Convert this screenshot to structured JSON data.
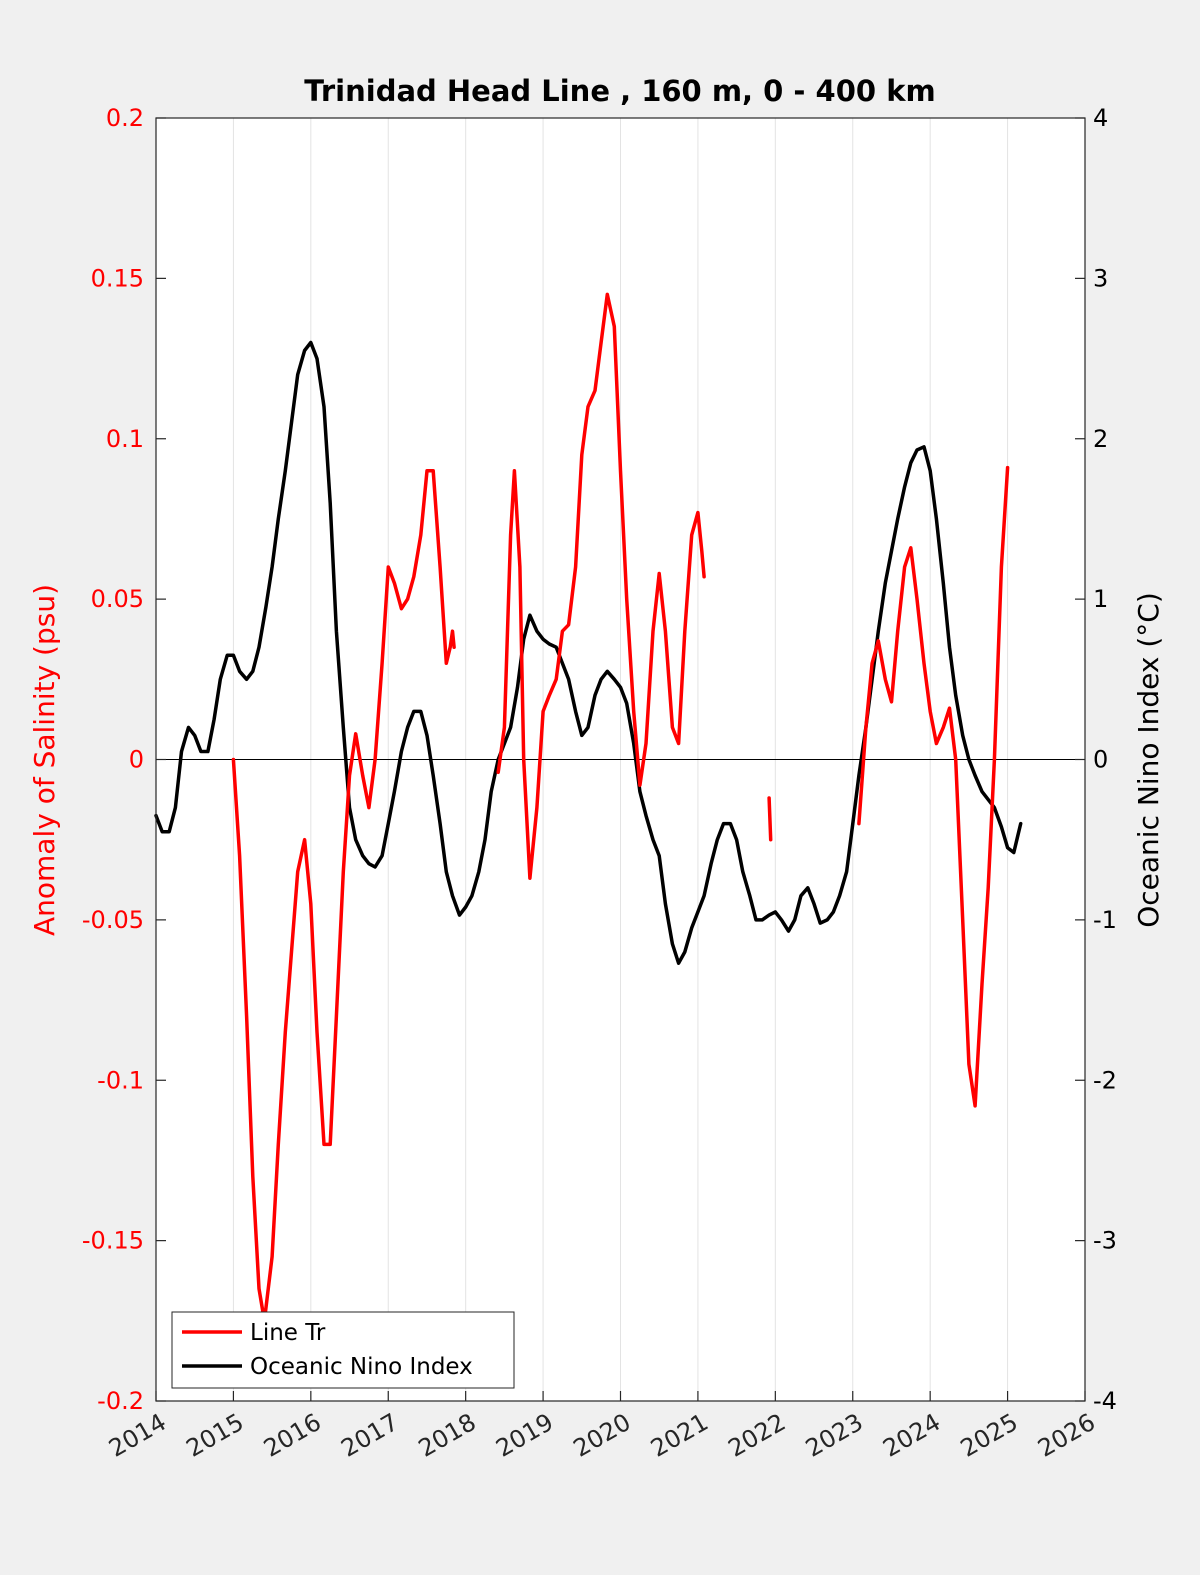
{
  "chart_data": {
    "type": "line",
    "title": "Trinidad Head Line , 160 m, 0 - 400 km",
    "xlim": [
      2014,
      2026
    ],
    "x_ticks": [
      "2014",
      "2015",
      "2016",
      "2017",
      "2018",
      "2019",
      "2020",
      "2021",
      "2022",
      "2023",
      "2024",
      "2025",
      "2026"
    ],
    "grid": "vertical",
    "legend_position": "bottom-left",
    "left_axis": {
      "label": "Anomaly of Salinity (psu)",
      "ylim": [
        -0.2,
        0.2
      ],
      "ticks": [
        "0.2",
        "0.15",
        "0.1",
        "0.05",
        "0",
        "-0.05",
        "-0.1",
        "-0.15",
        "-0.2"
      ],
      "color": "#ff0000"
    },
    "right_axis": {
      "label": "Oceanic Nino Index (°C)",
      "ylim": [
        -4,
        4
      ],
      "ticks": [
        "4",
        "3",
        "2",
        "1",
        "0",
        "-1",
        "-2",
        "-3",
        "-4"
      ],
      "color": "#000000"
    },
    "series": [
      {
        "name": "Line Tr",
        "axis": "left",
        "color": "#ff0000",
        "segments": [
          [
            [
              2015.0,
              0.0
            ],
            [
              2015.08,
              -0.03
            ],
            [
              2015.17,
              -0.08
            ],
            [
              2015.25,
              -0.13
            ],
            [
              2015.33,
              -0.165
            ],
            [
              2015.4,
              -0.175
            ],
            [
              2015.5,
              -0.155
            ],
            [
              2015.58,
              -0.12
            ],
            [
              2015.67,
              -0.085
            ],
            [
              2015.75,
              -0.06
            ],
            [
              2015.83,
              -0.035
            ],
            [
              2015.92,
              -0.025
            ],
            [
              2016.0,
              -0.045
            ],
            [
              2016.08,
              -0.085
            ],
            [
              2016.17,
              -0.12
            ],
            [
              2016.25,
              -0.12
            ],
            [
              2016.33,
              -0.08
            ],
            [
              2016.42,
              -0.035
            ],
            [
              2016.5,
              -0.005
            ],
            [
              2016.58,
              0.008
            ],
            [
              2016.67,
              -0.005
            ],
            [
              2016.75,
              -0.015
            ],
            [
              2016.83,
              0.0
            ],
            [
              2016.92,
              0.03
            ],
            [
              2017.0,
              0.06
            ],
            [
              2017.08,
              0.055
            ],
            [
              2017.17,
              0.047
            ],
            [
              2017.25,
              0.05
            ],
            [
              2017.33,
              0.057
            ],
            [
              2017.42,
              0.07
            ],
            [
              2017.5,
              0.09
            ],
            [
              2017.58,
              0.09
            ],
            [
              2017.67,
              0.06
            ],
            [
              2017.75,
              0.03
            ],
            [
              2017.8,
              0.035
            ],
            [
              2017.83,
              0.04
            ],
            [
              2017.85,
              0.035
            ]
          ],
          [
            [
              2018.42,
              -0.004
            ],
            [
              2018.5,
              0.01
            ],
            [
              2018.58,
              0.07
            ],
            [
              2018.63,
              0.09
            ],
            [
              2018.7,
              0.06
            ],
            [
              2018.75,
              0.0
            ],
            [
              2018.83,
              -0.037
            ],
            [
              2018.92,
              -0.015
            ],
            [
              2019.0,
              0.015
            ],
            [
              2019.08,
              0.02
            ],
            [
              2019.17,
              0.025
            ],
            [
              2019.25,
              0.04
            ],
            [
              2019.33,
              0.042
            ],
            [
              2019.42,
              0.06
            ],
            [
              2019.5,
              0.095
            ],
            [
              2019.58,
              0.11
            ],
            [
              2019.67,
              0.115
            ],
            [
              2019.75,
              0.13
            ],
            [
              2019.83,
              0.145
            ],
            [
              2019.92,
              0.135
            ],
            [
              2020.0,
              0.09
            ],
            [
              2020.08,
              0.05
            ],
            [
              2020.17,
              0.015
            ],
            [
              2020.25,
              -0.008
            ],
            [
              2020.33,
              0.005
            ],
            [
              2020.42,
              0.04
            ],
            [
              2020.5,
              0.058
            ],
            [
              2020.58,
              0.04
            ],
            [
              2020.67,
              0.01
            ],
            [
              2020.75,
              0.005
            ],
            [
              2020.83,
              0.04
            ],
            [
              2020.92,
              0.07
            ],
            [
              2021.0,
              0.077
            ],
            [
              2021.05,
              0.065
            ],
            [
              2021.08,
              0.057
            ]
          ]
        ],
        "isolated_segments": [
          [
            [
              2021.92,
              -0.012
            ],
            [
              2021.94,
              -0.025
            ]
          ]
        ],
        "late_segment": [
          [
            2023.08,
            -0.02
          ],
          [
            2023.17,
            0.01
          ],
          [
            2023.25,
            0.03
          ],
          [
            2023.33,
            0.037
          ],
          [
            2023.42,
            0.025
          ],
          [
            2023.5,
            0.018
          ],
          [
            2023.58,
            0.04
          ],
          [
            2023.67,
            0.06
          ],
          [
            2023.75,
            0.066
          ],
          [
            2023.83,
            0.05
          ],
          [
            2023.92,
            0.03
          ],
          [
            2024.0,
            0.015
          ],
          [
            2024.08,
            0.005
          ],
          [
            2024.17,
            0.01
          ],
          [
            2024.25,
            0.016
          ],
          [
            2024.33,
            0.0
          ],
          [
            2024.42,
            -0.05
          ],
          [
            2024.5,
            -0.095
          ],
          [
            2024.58,
            -0.108
          ],
          [
            2024.67,
            -0.07
          ],
          [
            2024.75,
            -0.04
          ],
          [
            2024.83,
            0.0
          ],
          [
            2024.92,
            0.06
          ],
          [
            2025.0,
            0.091
          ]
        ]
      },
      {
        "name": "Oceanic Nino Index",
        "axis": "right",
        "color": "#000000",
        "segments": [
          [
            [
              2014.0,
              -0.35
            ],
            [
              2014.08,
              -0.45
            ],
            [
              2014.17,
              -0.45
            ],
            [
              2014.25,
              -0.3
            ],
            [
              2014.33,
              0.05
            ],
            [
              2014.42,
              0.2
            ],
            [
              2014.5,
              0.15
            ],
            [
              2014.58,
              0.05
            ],
            [
              2014.67,
              0.05
            ],
            [
              2014.75,
              0.25
            ],
            [
              2014.83,
              0.5
            ],
            [
              2014.92,
              0.65
            ],
            [
              2015.0,
              0.65
            ],
            [
              2015.08,
              0.55
            ],
            [
              2015.17,
              0.5
            ],
            [
              2015.25,
              0.55
            ],
            [
              2015.33,
              0.7
            ],
            [
              2015.42,
              0.95
            ],
            [
              2015.5,
              1.2
            ],
            [
              2015.58,
              1.5
            ],
            [
              2015.67,
              1.8
            ],
            [
              2015.75,
              2.1
            ],
            [
              2015.83,
              2.4
            ],
            [
              2015.92,
              2.55
            ],
            [
              2016.0,
              2.6
            ],
            [
              2016.08,
              2.5
            ],
            [
              2016.17,
              2.2
            ],
            [
              2016.25,
              1.6
            ],
            [
              2016.33,
              0.8
            ],
            [
              2016.42,
              0.2
            ],
            [
              2016.5,
              -0.3
            ],
            [
              2016.58,
              -0.5
            ],
            [
              2016.67,
              -0.6
            ],
            [
              2016.75,
              -0.65
            ],
            [
              2016.83,
              -0.67
            ],
            [
              2016.92,
              -0.6
            ],
            [
              2017.0,
              -0.4
            ],
            [
              2017.08,
              -0.2
            ],
            [
              2017.17,
              0.05
            ],
            [
              2017.25,
              0.2
            ],
            [
              2017.33,
              0.3
            ],
            [
              2017.42,
              0.3
            ],
            [
              2017.5,
              0.15
            ],
            [
              2017.58,
              -0.1
            ],
            [
              2017.67,
              -0.4
            ],
            [
              2017.75,
              -0.7
            ],
            [
              2017.83,
              -0.85
            ],
            [
              2017.92,
              -0.97
            ],
            [
              2018.0,
              -0.92
            ],
            [
              2018.08,
              -0.85
            ],
            [
              2018.17,
              -0.7
            ],
            [
              2018.25,
              -0.5
            ],
            [
              2018.33,
              -0.2
            ],
            [
              2018.42,
              0.0
            ],
            [
              2018.5,
              0.1
            ],
            [
              2018.58,
              0.2
            ],
            [
              2018.67,
              0.45
            ],
            [
              2018.75,
              0.75
            ],
            [
              2018.83,
              0.9
            ],
            [
              2018.92,
              0.8
            ],
            [
              2019.0,
              0.75
            ],
            [
              2019.08,
              0.72
            ],
            [
              2019.17,
              0.7
            ],
            [
              2019.25,
              0.6
            ],
            [
              2019.33,
              0.5
            ],
            [
              2019.42,
              0.3
            ],
            [
              2019.5,
              0.15
            ],
            [
              2019.58,
              0.2
            ],
            [
              2019.67,
              0.4
            ],
            [
              2019.75,
              0.5
            ],
            [
              2019.83,
              0.55
            ],
            [
              2019.92,
              0.5
            ],
            [
              2020.0,
              0.45
            ],
            [
              2020.08,
              0.35
            ],
            [
              2020.17,
              0.1
            ],
            [
              2020.25,
              -0.2
            ],
            [
              2020.33,
              -0.35
            ],
            [
              2020.42,
              -0.5
            ],
            [
              2020.5,
              -0.6
            ],
            [
              2020.58,
              -0.9
            ],
            [
              2020.67,
              -1.15
            ],
            [
              2020.75,
              -1.27
            ],
            [
              2020.83,
              -1.2
            ],
            [
              2020.92,
              -1.05
            ],
            [
              2021.0,
              -0.95
            ],
            [
              2021.08,
              -0.85
            ],
            [
              2021.17,
              -0.65
            ],
            [
              2021.25,
              -0.5
            ],
            [
              2021.33,
              -0.4
            ],
            [
              2021.42,
              -0.4
            ],
            [
              2021.5,
              -0.5
            ],
            [
              2021.58,
              -0.7
            ],
            [
              2021.67,
              -0.85
            ],
            [
              2021.75,
              -1.0
            ],
            [
              2021.83,
              -1.0
            ],
            [
              2021.92,
              -0.97
            ],
            [
              2022.0,
              -0.95
            ],
            [
              2022.08,
              -1.0
            ],
            [
              2022.17,
              -1.07
            ],
            [
              2022.25,
              -1.0
            ],
            [
              2022.33,
              -0.85
            ],
            [
              2022.42,
              -0.8
            ],
            [
              2022.5,
              -0.9
            ],
            [
              2022.58,
              -1.02
            ],
            [
              2022.67,
              -1.0
            ],
            [
              2022.75,
              -0.95
            ],
            [
              2022.83,
              -0.85
            ],
            [
              2022.92,
              -0.7
            ],
            [
              2023.0,
              -0.4
            ],
            [
              2023.08,
              -0.1
            ],
            [
              2023.17,
              0.2
            ],
            [
              2023.25,
              0.5
            ],
            [
              2023.33,
              0.8
            ],
            [
              2023.42,
              1.1
            ],
            [
              2023.5,
              1.3
            ],
            [
              2023.58,
              1.5
            ],
            [
              2023.67,
              1.7
            ],
            [
              2023.75,
              1.85
            ],
            [
              2023.83,
              1.93
            ],
            [
              2023.92,
              1.95
            ],
            [
              2024.0,
              1.8
            ],
            [
              2024.08,
              1.5
            ],
            [
              2024.17,
              1.1
            ],
            [
              2024.25,
              0.7
            ],
            [
              2024.33,
              0.4
            ],
            [
              2024.42,
              0.15
            ],
            [
              2024.5,
              0.0
            ],
            [
              2024.58,
              -0.1
            ],
            [
              2024.67,
              -0.2
            ],
            [
              2024.75,
              -0.25
            ],
            [
              2024.83,
              -0.3
            ],
            [
              2024.92,
              -0.42
            ],
            [
              2025.0,
              -0.55
            ],
            [
              2025.08,
              -0.58
            ],
            [
              2025.17,
              -0.4
            ]
          ]
        ]
      }
    ]
  }
}
